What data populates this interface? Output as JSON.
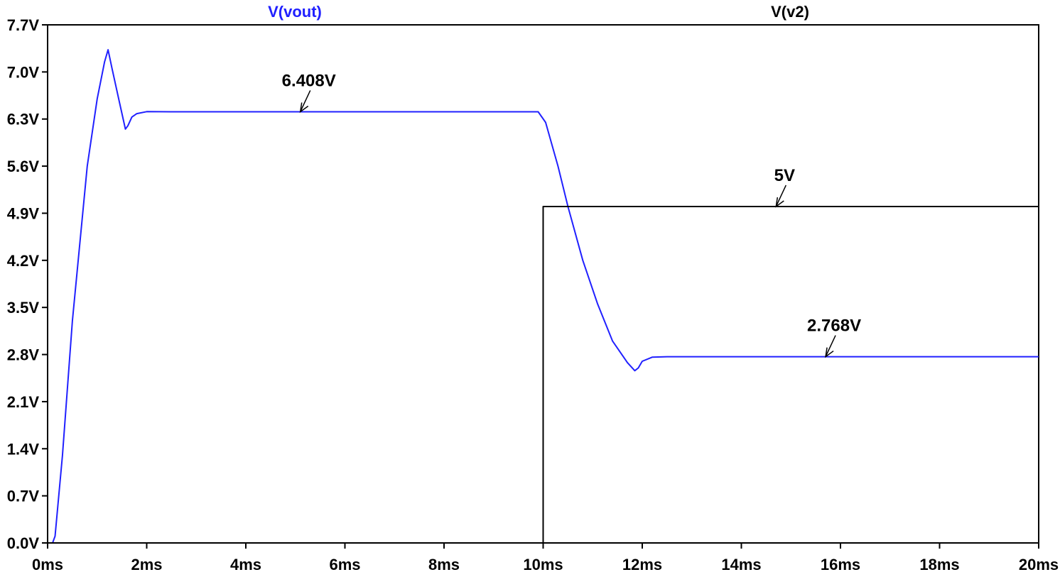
{
  "chart_data": {
    "type": "line",
    "x_unit": "ms",
    "y_unit": "V",
    "xlim": [
      0,
      20
    ],
    "ylim": [
      0,
      7.7
    ],
    "xticks": [
      0,
      2,
      4,
      6,
      8,
      10,
      12,
      14,
      16,
      18,
      20
    ],
    "xtick_labels": [
      "0ms",
      "2ms",
      "4ms",
      "6ms",
      "8ms",
      "10ms",
      "12ms",
      "14ms",
      "16ms",
      "18ms",
      "20ms"
    ],
    "yticks": [
      0,
      0.7,
      1.4,
      2.1,
      2.8,
      3.5,
      4.2,
      4.9,
      5.6,
      6.3,
      7.0,
      7.7
    ],
    "ytick_labels": [
      "0.0V",
      "0.7V",
      "1.4V",
      "2.1V",
      "2.8V",
      "3.5V",
      "4.2V",
      "4.9V",
      "5.6V",
      "6.3V",
      "7.0V",
      "7.7V"
    ],
    "grid": false,
    "series": [
      {
        "name": "V(vout)",
        "color": "#2020ff",
        "x": [
          0,
          0.1,
          0.15,
          0.3,
          0.5,
          0.8,
          1.0,
          1.15,
          1.22,
          1.3,
          1.45,
          1.57,
          1.62,
          1.7,
          1.8,
          2.0,
          2.5,
          4.0,
          6.0,
          8.0,
          9.9,
          10.05,
          10.3,
          10.5,
          10.8,
          11.1,
          11.4,
          11.7,
          11.85,
          11.92,
          12.0,
          12.2,
          12.5,
          14.0,
          16.0,
          18.0,
          20.0
        ],
        "y": [
          0,
          0,
          0.1,
          1.3,
          3.3,
          5.6,
          6.6,
          7.15,
          7.33,
          7.05,
          6.55,
          6.15,
          6.2,
          6.33,
          6.38,
          6.41,
          6.408,
          6.408,
          6.408,
          6.408,
          6.408,
          6.25,
          5.6,
          5.0,
          4.2,
          3.55,
          3.0,
          2.68,
          2.56,
          2.6,
          2.7,
          2.76,
          2.768,
          2.768,
          2.768,
          2.768,
          2.768
        ]
      },
      {
        "name": "V(v2)",
        "color": "#000000",
        "x": [
          0,
          10,
          10,
          20
        ],
        "y": [
          0,
          0,
          5,
          5
        ]
      }
    ],
    "annotations": [
      {
        "text": "6.408V",
        "x": 5.1,
        "y": 6.408
      },
      {
        "text": "5V",
        "x": 14.7,
        "y": 5
      },
      {
        "text": "2.768V",
        "x": 15.7,
        "y": 2.768
      }
    ]
  }
}
